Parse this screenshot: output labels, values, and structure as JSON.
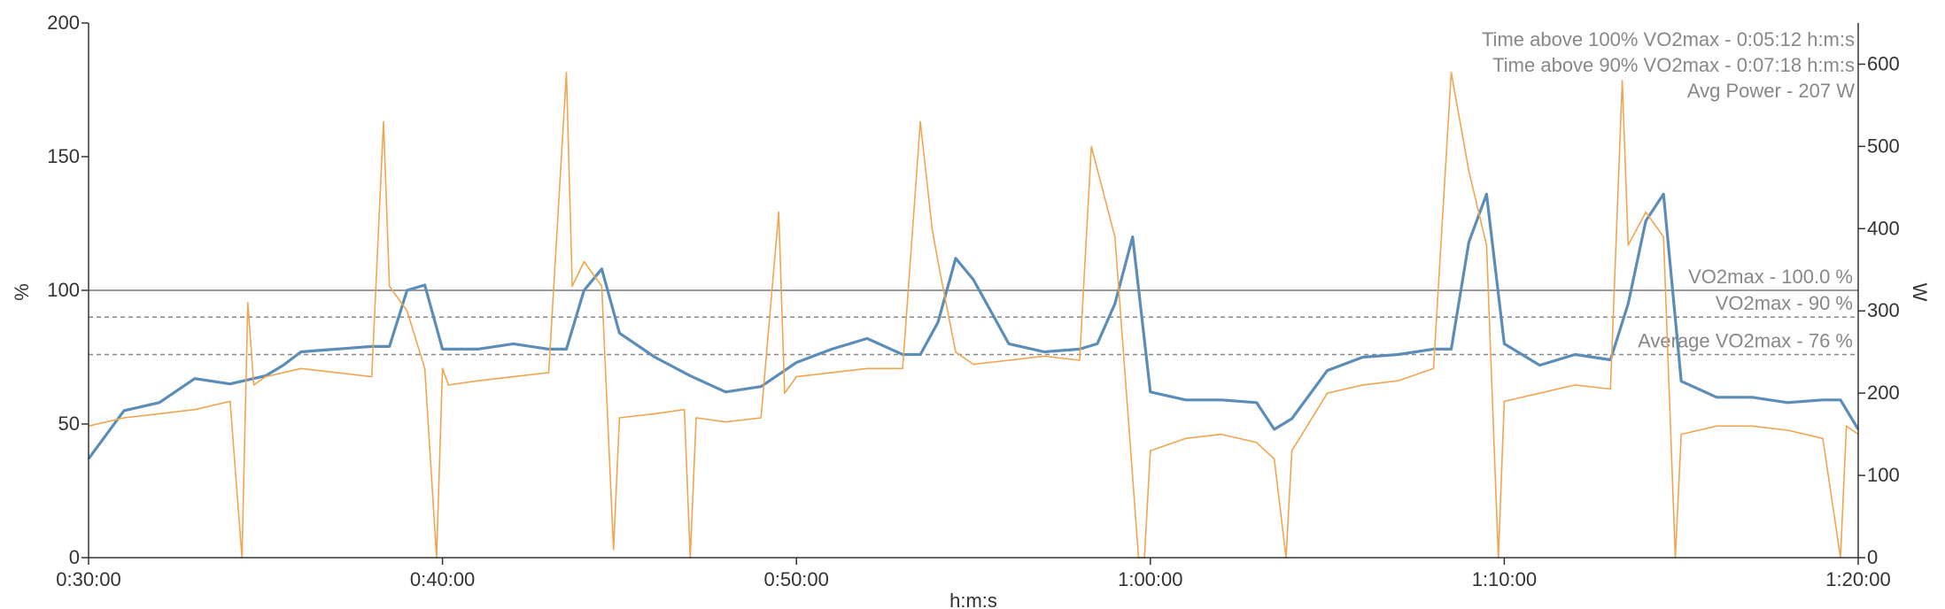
{
  "chart_data": {
    "type": "line",
    "xlabel": "h:m:s",
    "ylabel": "%",
    "y2label": "W",
    "xlim": [
      "0:30:00",
      "1:20:00"
    ],
    "ylim": [
      0,
      200
    ],
    "y2lim": [
      0,
      650
    ],
    "x_ticks": [
      "0:30:00",
      "0:40:00",
      "0:50:00",
      "1:00:00",
      "1:10:00",
      "1:20:00"
    ],
    "y_ticks": [
      0,
      50,
      100,
      150,
      200
    ],
    "y2_ticks": [
      0,
      100,
      200,
      300,
      400,
      500,
      600
    ],
    "grid": false,
    "stats": [
      "Time above 100% VO2max - 0:05:12 h:m:s",
      "Time above 90% VO2max - 0:07:18 h:m:s",
      "Avg Power - 207 W"
    ],
    "reference_lines": [
      {
        "label": "VO2max - 100.0 %",
        "value": 100,
        "style": "solid"
      },
      {
        "label": "VO2max - 90 %",
        "value": 90,
        "style": "dashed"
      },
      {
        "label": "Average VO2max - 76 %",
        "value": 76,
        "style": "dashed"
      }
    ],
    "series": [
      {
        "axis": "left",
        "color": "#5b8db8",
        "x": [
          "0:30:00",
          "0:31:00",
          "0:32:00",
          "0:33:00",
          "0:34:00",
          "0:35:00",
          "0:35:30",
          "0:36:00",
          "0:37:00",
          "0:38:00",
          "0:38:30",
          "0:39:00",
          "0:39:30",
          "0:40:00",
          "0:41:00",
          "0:42:00",
          "0:43:00",
          "0:43:30",
          "0:44:00",
          "0:44:30",
          "0:45:00",
          "0:46:00",
          "0:47:00",
          "0:48:00",
          "0:49:00",
          "0:50:00",
          "0:51:00",
          "0:52:00",
          "0:53:00",
          "0:53:30",
          "0:54:00",
          "0:54:30",
          "0:55:00",
          "0:56:00",
          "0:57:00",
          "0:58:00",
          "0:58:30",
          "0:59:00",
          "0:59:30",
          "1:00:00",
          "1:01:00",
          "1:02:00",
          "1:03:00",
          "1:03:30",
          "1:04:00",
          "1:05:00",
          "1:06:00",
          "1:07:00",
          "1:08:00",
          "1:08:30",
          "1:09:00",
          "1:09:30",
          "1:10:00",
          "1:11:00",
          "1:12:00",
          "1:13:00",
          "1:13:30",
          "1:14:00",
          "1:14:30",
          "1:15:00",
          "1:16:00",
          "1:17:00",
          "1:18:00",
          "1:19:00",
          "1:19:30",
          "1:20:00"
        ],
        "values": [
          37,
          55,
          58,
          67,
          65,
          68,
          72,
          77,
          78,
          79,
          79,
          100,
          102,
          78,
          78,
          80,
          78,
          78,
          100,
          108,
          84,
          75,
          68,
          62,
          64,
          73,
          78,
          82,
          76,
          76,
          88,
          112,
          104,
          80,
          77,
          78,
          80,
          95,
          120,
          62,
          59,
          59,
          58,
          48,
          52,
          70,
          75,
          76,
          78,
          78,
          118,
          136,
          80,
          72,
          76,
          74,
          95,
          126,
          136,
          66,
          60,
          60,
          58,
          59,
          59,
          48
        ]
      },
      {
        "axis": "right",
        "color": "#f0a550",
        "x": [
          "0:30:00",
          "0:31:00",
          "0:32:00",
          "0:33:00",
          "0:34:00",
          "0:34:20",
          "0:34:30",
          "0:34:40",
          "0:35:00",
          "0:36:00",
          "0:37:00",
          "0:38:00",
          "0:38:20",
          "0:38:30",
          "0:39:00",
          "0:39:30",
          "0:39:50",
          "0:40:00",
          "0:40:10",
          "0:41:00",
          "0:42:00",
          "0:43:00",
          "0:43:30",
          "0:43:40",
          "0:44:00",
          "0:44:30",
          "0:44:50",
          "0:45:00",
          "0:46:00",
          "0:46:50",
          "0:47:00",
          "0:47:10",
          "0:48:00",
          "0:49:00",
          "0:49:30",
          "0:49:40",
          "0:50:00",
          "0:51:00",
          "0:52:00",
          "0:53:00",
          "0:53:30",
          "0:53:50",
          "0:54:00",
          "0:54:30",
          "0:55:00",
          "0:56:00",
          "0:57:00",
          "0:58:00",
          "0:58:20",
          "0:59:00",
          "0:59:40",
          "0:59:50",
          "1:00:00",
          "1:01:00",
          "1:02:00",
          "1:03:00",
          "1:03:30",
          "1:03:50",
          "1:04:00",
          "1:05:00",
          "1:06:00",
          "1:07:00",
          "1:08:00",
          "1:08:30",
          "1:09:00",
          "1:09:30",
          "1:09:50",
          "1:10:00",
          "1:11:00",
          "1:12:00",
          "1:13:00",
          "1:13:20",
          "1:13:30",
          "1:14:00",
          "1:14:30",
          "1:14:50",
          "1:15:00",
          "1:16:00",
          "1:17:00",
          "1:18:00",
          "1:19:00",
          "1:19:30",
          "1:19:40",
          "1:20:00"
        ],
        "values": [
          160,
          170,
          175,
          180,
          190,
          0,
          310,
          210,
          220,
          230,
          225,
          220,
          530,
          330,
          300,
          230,
          0,
          230,
          210,
          215,
          220,
          225,
          590,
          330,
          360,
          330,
          10,
          170,
          175,
          180,
          0,
          170,
          165,
          170,
          420,
          200,
          220,
          225,
          230,
          230,
          530,
          400,
          360,
          250,
          235,
          240,
          245,
          240,
          500,
          390,
          0,
          0,
          130,
          145,
          150,
          140,
          120,
          0,
          130,
          200,
          210,
          215,
          230,
          590,
          470,
          380,
          0,
          190,
          200,
          210,
          205,
          580,
          380,
          420,
          390,
          0,
          150,
          160,
          160,
          155,
          145,
          0,
          160,
          150
        ]
      }
    ]
  }
}
